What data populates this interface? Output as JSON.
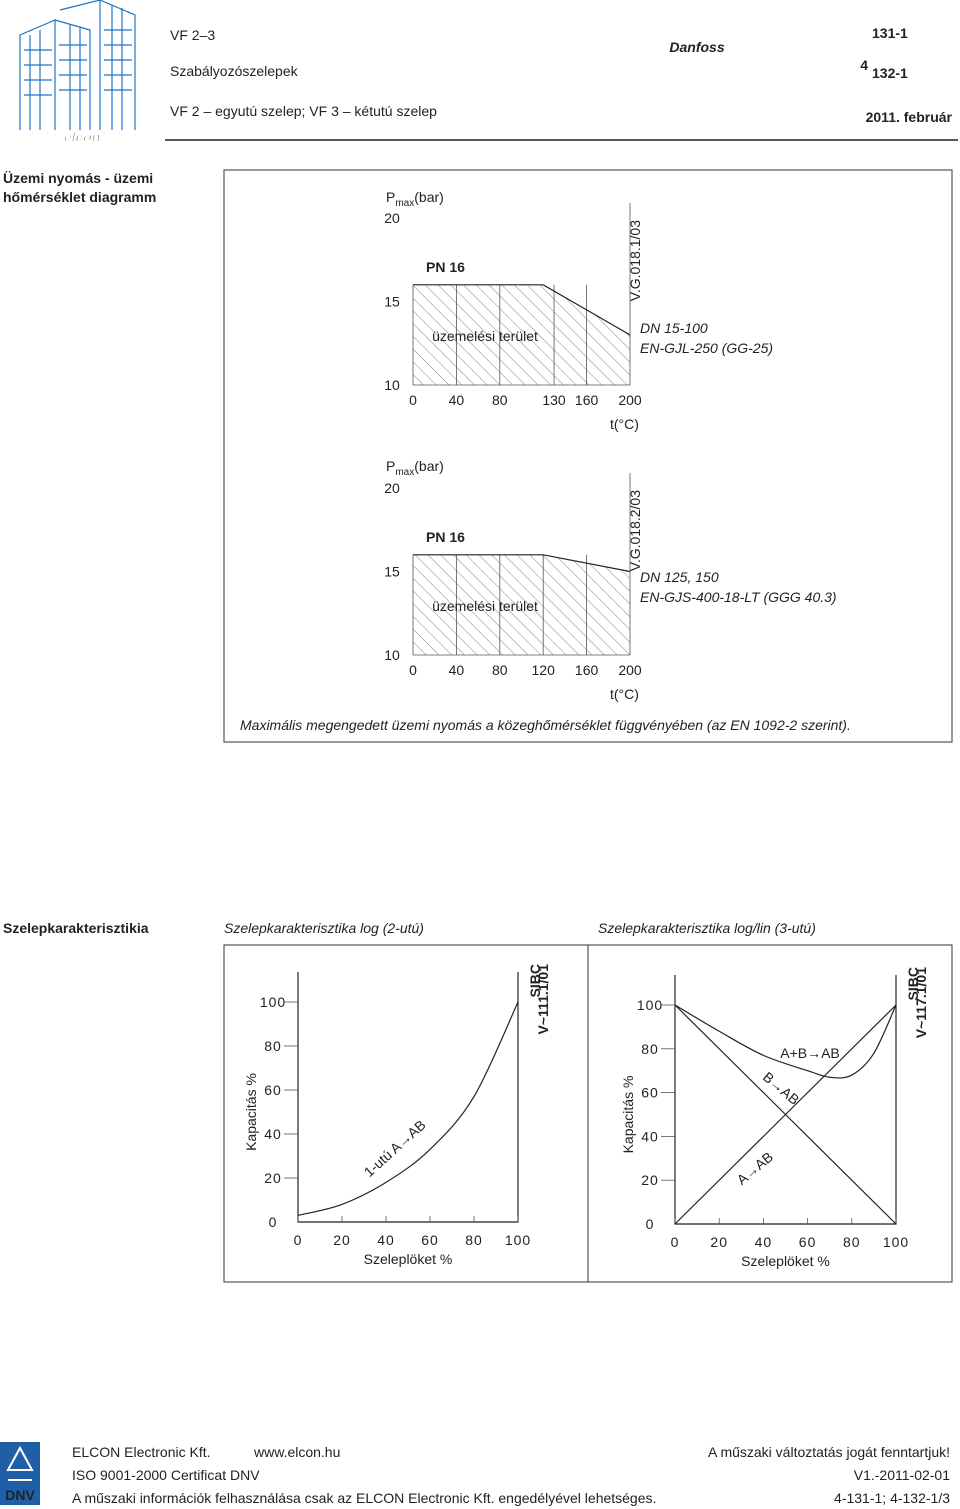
{
  "header": {
    "logo_text": "elcon",
    "title": "VF 2–3",
    "subtitle": "Szabályozószelepek",
    "description": "VF 2 – egyutú szelep; VF 3 – kétutú szelep",
    "brand": "Danfoss",
    "sheet_number": "4",
    "sheet_codes": [
      "131-1",
      "132-1"
    ],
    "date": "2011. február"
  },
  "pressure_section": {
    "label_lines": [
      "Üzemi nyomás - üzemi",
      "hőmérséklet diagramm"
    ],
    "caption": "Maximális megengedett üzemi nyomás a közeghőmérséklet függvényében (az EN 1092-2 szerint).",
    "diagrams": [
      {
        "y_label": "P",
        "y_label_sub": "max",
        "y_unit": "(bar)",
        "yticks": [
          10,
          15,
          20
        ],
        "xticks": [
          0,
          40,
          80,
          130,
          160,
          200
        ],
        "x_label": "t(°C)",
        "rating": "PN 16",
        "area_label": "üzemelési terület",
        "code": "V.G.018.1/03",
        "notes": [
          "DN 15-100",
          "EN-GJL-250 (GG-25)"
        ],
        "curve": {
          "x": [
            0,
            120,
            200
          ],
          "y": [
            16,
            16,
            13
          ]
        }
      },
      {
        "y_label": "P",
        "y_label_sub": "max",
        "y_unit": "(bar)",
        "yticks": [
          10,
          15,
          20
        ],
        "xticks": [
          0,
          40,
          80,
          120,
          160,
          200
        ],
        "x_label": "t(°C)",
        "rating": "PN 16",
        "area_label": "üzemelési terület",
        "code": "V.G.018.2/03",
        "notes": [
          "DN 125, 150",
          "EN-GJS-400-18-LT (GGG 40.3)"
        ],
        "curve": {
          "x": [
            0,
            120,
            200
          ],
          "y": [
            16,
            16,
            15
          ]
        }
      }
    ]
  },
  "characteristic_section": {
    "label": "Szelepkarakterisztikia",
    "charts": [
      {
        "title": "Szelepkarakterisztika log (2-utú)",
        "y_label": "Kapacitás %",
        "x_label": "Szeleplöket %",
        "yticks": [
          0,
          20,
          40,
          60,
          80,
          100
        ],
        "xticks": [
          0,
          20,
          40,
          60,
          80,
          100
        ],
        "code_lines": [
          "SIBC",
          "V~111.1/01"
        ],
        "curves": [
          {
            "label": "1-utú A→AB",
            "x": [
              0,
              20,
              40,
              60,
              80,
              100
            ],
            "y": [
              3,
              8,
              18,
              33,
              57,
              100
            ]
          }
        ]
      },
      {
        "title": "Szelepkarakterisztika log/lin (3-utú)",
        "y_label": "Kapacitás %",
        "x_label": "Szeleplöket %",
        "yticks": [
          0,
          20,
          40,
          60,
          80,
          100
        ],
        "xticks": [
          0,
          20,
          40,
          60,
          80,
          100
        ],
        "code_lines": [
          "SIBC",
          "V~117.1/01"
        ],
        "curves": [
          {
            "label": "A+B→AB",
            "x": [
              0,
              20,
              40,
              60,
              70,
              80,
              90,
              100
            ],
            "y": [
              100,
              88,
              77,
              70,
              67,
              68,
              78,
              100
            ]
          },
          {
            "label": "B→AB",
            "x": [
              0,
              100
            ],
            "y": [
              100,
              0
            ]
          },
          {
            "label": "A→AB",
            "x": [
              0,
              100
            ],
            "y": [
              0,
              100
            ]
          }
        ]
      }
    ]
  },
  "footer": {
    "logo_text": "DNV",
    "company": "ELCON Electronic Kft.",
    "website": "www.elcon.hu",
    "rights": "A műszaki változtatás jogát fenntartjuk!",
    "certificate": "ISO 9001-2000 Certificat DNV",
    "version": "V1.-2011-02-01",
    "notice": "A műszaki információk felhasználása csak az ELCON Electronic Kft. engedélyével lehetséges.",
    "page_ref": "4-131-1; 4-132-1/3"
  }
}
